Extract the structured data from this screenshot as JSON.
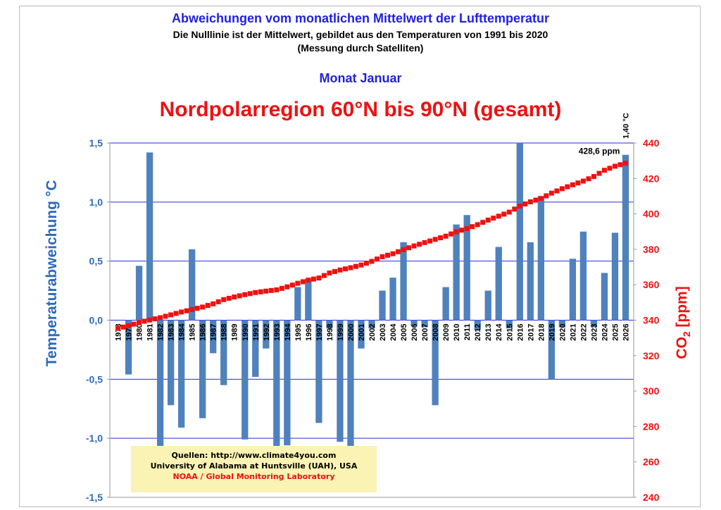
{
  "header": {
    "title": "Abweichungen vom monatlichen Mittelwert der Lufttemperatur",
    "subtitle": "Die Nulllinie ist der Mittelwert, gebildet aus den Temperaturen von 1991 bis 2020",
    "subtitle2": "(Messung durch Satelliten)",
    "month": "Monat Januar",
    "region": "Nordpolarregion 60°N bis 90°N (gesamt)"
  },
  "sources": {
    "line1": "Quellen: http://www.climate4you.com",
    "line2": "University of Alabama at Huntsville (UAH), USA",
    "line3": "NOAA / Global Monitoring Laboratory"
  },
  "colors": {
    "bar": "#4f81bd",
    "co2": "#ee1111",
    "grid": "#2a2ae0",
    "left_axis": "#2e6ab8",
    "right_axis": "#ee1111"
  },
  "chart_data": {
    "type": "bar",
    "ylabel": "Temperaturabweichung °C",
    "ylabel2_main": "CO",
    "ylabel2_sub": "2",
    "ylabel2_rest": " [ppm]",
    "ylim": [
      -1.5,
      1.5
    ],
    "yticks": [
      1.5,
      1.0,
      0.5,
      0.0,
      -0.5,
      -1.0,
      -1.5
    ],
    "ytick_labels": [
      "1,5",
      "1,0",
      "0,5",
      "0,0",
      "-0,5",
      "-1,0",
      "-1,5"
    ],
    "y2lim": [
      240,
      440
    ],
    "y2ticks": [
      240,
      260,
      280,
      300,
      320,
      340,
      360,
      380,
      400,
      420,
      440
    ],
    "grid": true,
    "categories": [
      "1978",
      "1979",
      "1980",
      "1981",
      "1982",
      "1983",
      "1984",
      "1985",
      "1986",
      "1987",
      "1988",
      "1989",
      "1990",
      "1991",
      "1992",
      "1993",
      "1994",
      "1995",
      "1996",
      "1997",
      "1998",
      "1999",
      "2000",
      "2001",
      "2002",
      "2003",
      "2004",
      "2005",
      "2006",
      "2007",
      "2008",
      "2009",
      "2010",
      "2011",
      "2012",
      "2013",
      "2014",
      "2015",
      "2016",
      "2017",
      "2018",
      "2019",
      "2020",
      "2021",
      "2022",
      "2023",
      "2024",
      "2025",
      "2026"
    ],
    "series": [
      {
        "name": "Temperaturabweichung",
        "type": "bar",
        "values": [
          0.0,
          -0.46,
          0.46,
          1.42,
          -1.07,
          -0.72,
          -0.91,
          0.6,
          -0.83,
          -0.28,
          -0.55,
          0.0,
          -1.01,
          -0.48,
          -0.24,
          -1.07,
          -1.06,
          0.28,
          0.35,
          -0.87,
          -0.07,
          -1.03,
          -1.07,
          -0.24,
          -0.07,
          0.25,
          0.36,
          0.66,
          -0.05,
          -0.06,
          -0.72,
          0.28,
          0.81,
          0.89,
          -0.08,
          0.25,
          0.62,
          -0.07,
          1.5,
          0.66,
          1.05,
          -0.5,
          -0.06,
          0.52,
          0.75,
          -0.06,
          0.4,
          0.74,
          1.4
        ]
      },
      {
        "name": "CO2",
        "type": "scatter",
        "values": [
          335.4,
          336.8,
          338.7,
          340.1,
          341.4,
          343.0,
          344.6,
          346.0,
          347.4,
          349.2,
          351.6,
          353.1,
          354.4,
          355.6,
          356.4,
          357.1,
          358.8,
          360.8,
          362.6,
          363.8,
          366.6,
          368.3,
          369.6,
          371.1,
          373.2,
          375.8,
          377.5,
          379.8,
          381.9,
          383.8,
          385.6,
          387.4,
          389.9,
          391.7,
          393.9,
          396.5,
          398.7,
          401.0,
          404.4,
          406.8,
          408.7,
          411.7,
          414.2,
          416.4,
          418.5,
          421.1,
          424.6,
          426.9,
          428.6
        ]
      }
    ],
    "annotations": {
      "last_value": "1,40 °C",
      "last_co2": "428,6 ppm"
    }
  }
}
